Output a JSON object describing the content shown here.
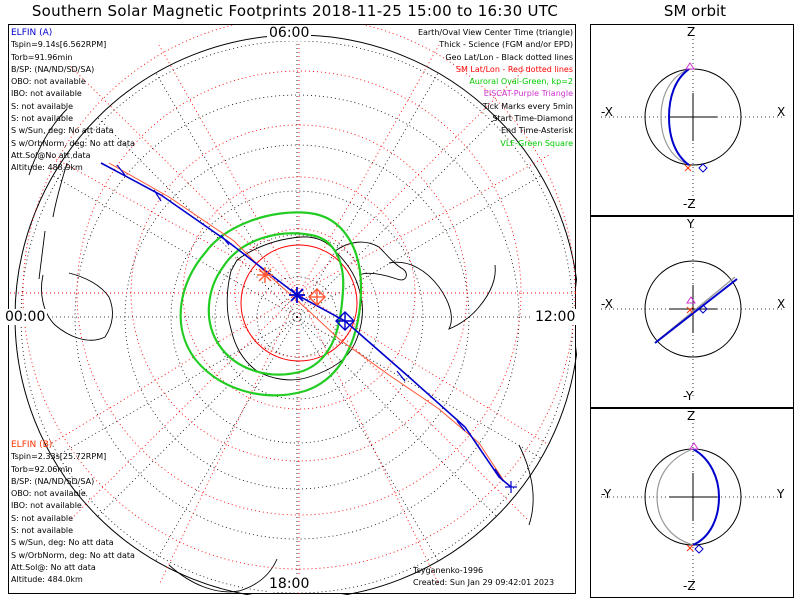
{
  "title": "Southern Solar Magnetic Footprints 2018-11-25 15:00 to 16:30 UTC",
  "orbit_title": "SM orbit",
  "clock_labels": {
    "top": "06:00",
    "left": "00:00",
    "right": "12:00",
    "bottom": "18:00"
  },
  "elfin_a": {
    "header": "ELFIN (A)",
    "lines": [
      "Tspin=9.14s[6.562RPM]",
      "Torb=91.96min",
      "B/SP: (NA/ND/SD/SA)",
      "OBO: not available",
      "IBO: not available",
      "S: not available",
      "S: not available",
      "S w/Sun, deg: No att data",
      "S w/OrbNorm, deg: No att data",
      "Att.Sol@No att data",
      "Altitude: 488.9km"
    ],
    "color": "#0000cc"
  },
  "elfin_b": {
    "header": "ELFIN (B)",
    "lines": [
      "Tspin=2.33s[25.72RPM]",
      "Torb=92.06min",
      "B/SP: (NA/ND/SD/SA)",
      "OBO: not available",
      "IBO: not available",
      "S: not available",
      "S: not available",
      "S w/Sun, deg: No att data",
      "S w/OrbNorm, deg: No att data",
      "Att.Sol@: No att data",
      "Altitude: 484.0km"
    ],
    "color": "#ff3300"
  },
  "legend": [
    {
      "text": "Earth/Oval View Center Time (triangle)",
      "color": "#000000"
    },
    {
      "text": "Thick - Science (FGM and/or EPD)",
      "color": "#000000"
    },
    {
      "text": "Geo Lat/Lon - Black dotted lines",
      "color": "#000000"
    },
    {
      "text": "SM Lat/Lon - Red dotted lines",
      "color": "#ff0000"
    },
    {
      "text": "Auroral Oval-Green, kp=2",
      "color": "#00cc00"
    },
    {
      "text": "EISCAT-Purple Triangle",
      "color": "#cc33cc"
    },
    {
      "text": "Tick Marks every 5min",
      "color": "#000000"
    },
    {
      "text": "Start Time-Diamond",
      "color": "#000000"
    },
    {
      "text": "End Time-Asterisk",
      "color": "#000000"
    },
    {
      "text": "VLF-Green Square",
      "color": "#00cc00"
    }
  ],
  "footer": {
    "model": "Tsyganenko-1996",
    "created": "Created: Sun Jan 29 09:42:01 2023"
  },
  "orbit_panels": [
    {
      "top": "Z",
      "bottom": "-Z",
      "left": "-X",
      "right": "X"
    },
    {
      "top": "Y",
      "bottom": "-Y",
      "left": "-X",
      "right": "X"
    },
    {
      "top": "Z",
      "bottom": "-Z",
      "left": "-Y",
      "right": "Y"
    }
  ]
}
